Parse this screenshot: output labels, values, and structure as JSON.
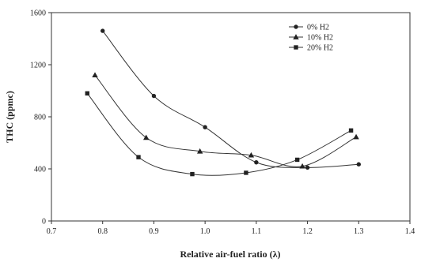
{
  "chart_data": {
    "type": "line",
    "title": "",
    "xlabel": "Relative air-fuel ratio (λ)",
    "ylabel": "THC (ppmc)",
    "xlim": [
      0.7,
      1.4
    ],
    "ylim": [
      0,
      1600
    ],
    "xticks": [
      0.7,
      0.8,
      0.9,
      1.0,
      1.1,
      1.2,
      1.3,
      1.4
    ],
    "xtick_labels": [
      "0.7",
      "0.8",
      "0.9",
      "1.0",
      "1.1",
      "1.2",
      "1.3",
      "1.4"
    ],
    "yticks": [
      0,
      400,
      800,
      1200,
      1600
    ],
    "ytick_labels": [
      "0",
      "400",
      "800",
      "1200",
      "1600"
    ],
    "grid": false,
    "legend_position": "top-right",
    "series": [
      {
        "name": "0%   H2",
        "marker": "circle",
        "points": [
          {
            "x": 0.8,
            "y": 1460
          },
          {
            "x": 0.9,
            "y": 960
          },
          {
            "x": 1.0,
            "y": 720
          },
          {
            "x": 1.1,
            "y": 450
          },
          {
            "x": 1.2,
            "y": 410
          },
          {
            "x": 1.3,
            "y": 435
          }
        ]
      },
      {
        "name": "10% H2",
        "marker": "triangle",
        "points": [
          {
            "x": 0.785,
            "y": 1120
          },
          {
            "x": 0.885,
            "y": 640
          },
          {
            "x": 0.99,
            "y": 535
          },
          {
            "x": 1.09,
            "y": 505
          },
          {
            "x": 1.19,
            "y": 420
          },
          {
            "x": 1.295,
            "y": 645
          }
        ]
      },
      {
        "name": "20% H2",
        "marker": "square",
        "points": [
          {
            "x": 0.77,
            "y": 980
          },
          {
            "x": 0.87,
            "y": 490
          },
          {
            "x": 0.975,
            "y": 360
          },
          {
            "x": 1.08,
            "y": 370
          },
          {
            "x": 1.18,
            "y": 470
          },
          {
            "x": 1.285,
            "y": 695
          }
        ]
      }
    ]
  }
}
